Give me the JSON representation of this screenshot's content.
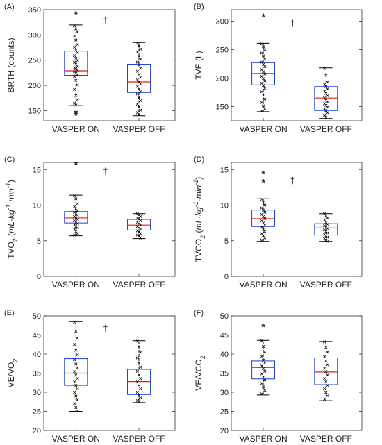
{
  "figure": {
    "panels": [
      {
        "id": "A",
        "label": "(A)",
        "ylabel_parts": [
          {
            "t": "BRTH (counts)"
          }
        ]
      },
      {
        "id": "B",
        "label": "(B)",
        "ylabel_parts": [
          {
            "t": "TVE (L)"
          }
        ]
      },
      {
        "id": "C",
        "label": "(C)",
        "ylabel_parts": [
          {
            "t": "TVO"
          },
          {
            "t": "2",
            "sub": true
          },
          {
            "t": " ("
          },
          {
            "t": "mL·kg",
            "italic": true
          },
          {
            "t": "-1",
            "sup": true,
            "italic": true
          },
          {
            "t": "·min",
            "italic": true
          },
          {
            "t": "-1",
            "sup": true,
            "italic": true
          },
          {
            "t": ")"
          }
        ]
      },
      {
        "id": "D",
        "label": "(D)",
        "ylabel_parts": [
          {
            "t": "TVCO"
          },
          {
            "t": "2",
            "sub": true
          },
          {
            "t": " ("
          },
          {
            "t": "mL·kg",
            "italic": true
          },
          {
            "t": "-1",
            "sup": true,
            "italic": true
          },
          {
            "t": "·min",
            "italic": true
          },
          {
            "t": "-1",
            "sup": true,
            "italic": true
          },
          {
            "t": ")"
          }
        ]
      },
      {
        "id": "E",
        "label": "(E)",
        "ylabel_parts": [
          {
            "t": "VE/VO"
          },
          {
            "t": "2",
            "sub": true
          }
        ]
      },
      {
        "id": "F",
        "label": "(F)",
        "ylabel_parts": [
          {
            "t": "VE/VCO"
          },
          {
            "t": "2",
            "sub": true
          }
        ]
      }
    ],
    "colors": {
      "box": "#1f3fd6",
      "median": "#e0201b",
      "whisker": "#000000",
      "point": "#000000",
      "axis": "#333333"
    }
  },
  "chart_data": [
    {
      "panel": "A",
      "type": "box",
      "categories": [
        "VASPER ON",
        "VASPER OFF"
      ],
      "ylabel": "BRTH (counts)",
      "ylim": [
        130,
        350
      ],
      "yticks": [
        150,
        200,
        250,
        300,
        350
      ],
      "significance_marker": "†",
      "series": [
        {
          "category": "VASPER ON",
          "q1": 220,
          "median": 229,
          "q3": 268,
          "whisker_low": 160,
          "whisker_high": 320,
          "outliers": [
            342,
            145,
            141
          ],
          "points": [
            318,
            312,
            306,
            298,
            290,
            281,
            276,
            270,
            265,
            259,
            254,
            249,
            246,
            242,
            238,
            235,
            233,
            230,
            227,
            224,
            221,
            218,
            210,
            201,
            192,
            180,
            172,
            165,
            161
          ]
        },
        {
          "category": "VASPER OFF",
          "q1": 186,
          "median": 207,
          "q3": 242,
          "whisker_low": 140,
          "whisker_high": 285,
          "outliers": [],
          "points": [
            284,
            279,
            272,
            266,
            258,
            252,
            246,
            240,
            234,
            228,
            222,
            216,
            211,
            207,
            203,
            198,
            193,
            188,
            183,
            176,
            170,
            163,
            157,
            151,
            146,
            142
          ]
        }
      ]
    },
    {
      "panel": "B",
      "type": "box",
      "categories": [
        "VASPER ON",
        "VASPER OFF"
      ],
      "ylabel": "TVE (L)",
      "ylim": [
        125,
        320
      ],
      "yticks": [
        150,
        200,
        250,
        300
      ],
      "significance_marker": "†",
      "series": [
        {
          "category": "VASPER ON",
          "q1": 188,
          "median": 208,
          "q3": 227,
          "whisker_low": 141,
          "whisker_high": 261,
          "outliers": [
            308
          ],
          "points": [
            260,
            255,
            250,
            244,
            239,
            233,
            228,
            224,
            220,
            215,
            211,
            207,
            203,
            199,
            195,
            191,
            187,
            182,
            176,
            170,
            163,
            157,
            151,
            146,
            142
          ]
        },
        {
          "category": "VASPER OFF",
          "q1": 143,
          "median": 165,
          "q3": 185,
          "whisker_low": 129,
          "whisker_high": 218,
          "outliers": [],
          "points": [
            217,
            205,
            193,
            189,
            185,
            181,
            177,
            173,
            169,
            165,
            161,
            158,
            155,
            152,
            149,
            146,
            143,
            139,
            135,
            131
          ]
        }
      ]
    },
    {
      "panel": "C",
      "type": "box",
      "categories": [
        "VASPER ON",
        "VASPER OFF"
      ],
      "ylabel": "TVO2 (mL·kg-1·min-1)",
      "ylim": [
        0,
        16
      ],
      "yticks": [
        0,
        5,
        10,
        15
      ],
      "significance_marker": "†",
      "series": [
        {
          "category": "VASPER ON",
          "q1": 7.5,
          "median": 8.2,
          "q3": 9.1,
          "whisker_low": 5.7,
          "whisker_high": 11.4,
          "outliers": [
            15.7
          ],
          "points": [
            11.3,
            10.9,
            10.2,
            9.8,
            9.5,
            9.2,
            9.0,
            8.8,
            8.6,
            8.4,
            8.2,
            8.0,
            7.8,
            7.6,
            7.4,
            7.2,
            7.0,
            6.8,
            6.6,
            6.3,
            6.0,
            5.8
          ]
        },
        {
          "category": "VASPER OFF",
          "q1": 6.5,
          "median": 7.2,
          "q3": 8.0,
          "whisker_low": 5.3,
          "whisker_high": 8.8,
          "outliers": [],
          "points": [
            8.8,
            8.6,
            8.4,
            8.2,
            8.0,
            7.8,
            7.6,
            7.4,
            7.2,
            7.0,
            6.8,
            6.6,
            6.4,
            6.2,
            6.0,
            5.8,
            5.6,
            5.4
          ]
        }
      ]
    },
    {
      "panel": "D",
      "type": "box",
      "categories": [
        "VASPER ON",
        "VASPER OFF"
      ],
      "ylabel": "TVCO2 (mL·kg-1·min-1)",
      "ylim": [
        0,
        16
      ],
      "yticks": [
        0,
        5,
        10,
        15
      ],
      "significance_marker": "†",
      "series": [
        {
          "category": "VASPER ON",
          "q1": 7.0,
          "median": 8.1,
          "q3": 9.3,
          "whisker_low": 4.9,
          "whisker_high": 10.9,
          "outliers": [
            14.4,
            13.2
          ],
          "points": [
            10.8,
            10.4,
            10.0,
            9.6,
            9.3,
            9.0,
            8.7,
            8.4,
            8.1,
            7.8,
            7.5,
            7.2,
            6.9,
            6.6,
            6.3,
            6.0,
            5.7,
            5.4,
            5.1
          ]
        },
        {
          "category": "VASPER OFF",
          "q1": 5.8,
          "median": 6.8,
          "q3": 7.4,
          "whisker_low": 4.9,
          "whisker_high": 8.8,
          "outliers": [],
          "points": [
            8.8,
            8.5,
            8.2,
            7.9,
            7.6,
            7.3,
            7.1,
            6.9,
            6.7,
            6.5,
            6.3,
            6.1,
            5.9,
            5.7,
            5.5,
            5.3,
            5.1,
            4.9
          ]
        }
      ]
    },
    {
      "panel": "E",
      "type": "box",
      "categories": [
        "VASPER ON",
        "VASPER OFF"
      ],
      "ylabel": "VE/VO2",
      "ylim": [
        20,
        50
      ],
      "yticks": [
        20,
        25,
        30,
        35,
        40,
        45,
        50
      ],
      "significance_marker": "†",
      "series": [
        {
          "category": "VASPER ON",
          "q1": 31.8,
          "median": 35.0,
          "q3": 38.8,
          "whisker_low": 25.0,
          "whisker_high": 48.5,
          "outliers": [],
          "points": [
            48.4,
            46.0,
            44.2,
            42.5,
            41.0,
            39.8,
            38.5,
            37.4,
            36.4,
            35.4,
            34.5,
            33.6,
            32.7,
            31.8,
            30.9,
            30.0,
            29.0,
            28.0,
            27.0,
            26.0,
            25.1
          ]
        },
        {
          "category": "VASPER OFF",
          "q1": 29.4,
          "median": 32.8,
          "q3": 36.0,
          "whisker_low": 27.3,
          "whisker_high": 43.5,
          "outliers": [],
          "points": [
            43.4,
            42.0,
            40.5,
            39.0,
            37.8,
            36.6,
            35.5,
            34.5,
            33.6,
            32.7,
            31.8,
            30.9,
            30.0,
            29.2,
            28.5,
            27.8,
            27.4
          ]
        }
      ]
    },
    {
      "panel": "F",
      "type": "box",
      "categories": [
        "VASPER ON",
        "VASPER OFF"
      ],
      "ylabel": "VE/VCO2",
      "ylim": [
        20,
        50
      ],
      "yticks": [
        20,
        25,
        30,
        35,
        40,
        45,
        50
      ],
      "significance_marker": "",
      "series": [
        {
          "category": "VASPER ON",
          "q1": 33.5,
          "median": 36.5,
          "q3": 38.2,
          "whisker_low": 29.3,
          "whisker_high": 43.6,
          "outliers": [
            47.2
          ],
          "points": [
            43.5,
            42.0,
            40.6,
            39.4,
            38.4,
            37.6,
            36.9,
            36.2,
            35.5,
            34.8,
            34.0,
            33.2,
            32.3,
            31.4,
            30.5,
            29.6
          ]
        },
        {
          "category": "VASPER OFF",
          "q1": 32.0,
          "median": 35.3,
          "q3": 39.0,
          "whisker_low": 27.8,
          "whisker_high": 43.3,
          "outliers": [],
          "points": [
            43.2,
            41.8,
            40.5,
            39.3,
            38.2,
            37.2,
            36.3,
            35.4,
            34.5,
            33.6,
            32.7,
            31.8,
            30.9,
            30.0,
            29.1,
            28.2
          ]
        }
      ]
    }
  ]
}
